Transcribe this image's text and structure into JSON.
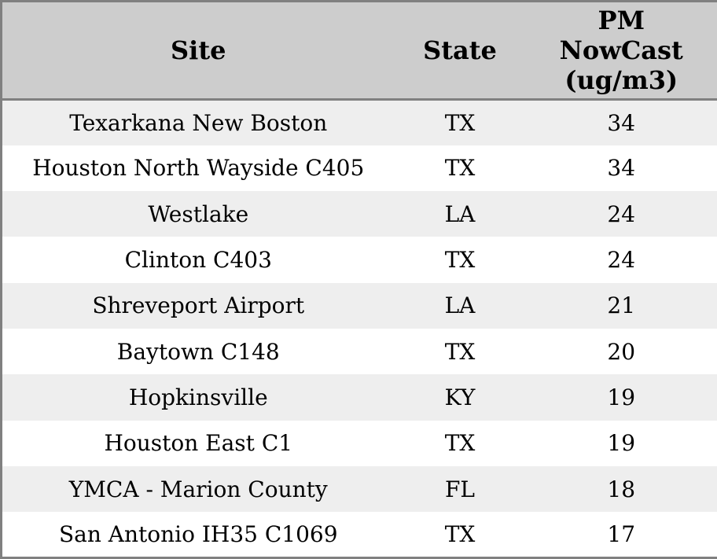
{
  "chart_data": {
    "type": "table",
    "title": "",
    "columns": [
      {
        "key": "site",
        "label": "Site",
        "display": "Site"
      },
      {
        "key": "state",
        "label": "State",
        "display": "State"
      },
      {
        "key": "pm",
        "label": "PM NowCast (ug/m3)",
        "display": "PM\nNowCast\n(ug/m3)"
      }
    ],
    "rows": [
      [
        "Texarkana New Boston",
        "TX",
        34
      ],
      [
        "Houston North Wayside C405",
        "TX",
        34
      ],
      [
        "Westlake",
        "LA",
        24
      ],
      [
        "Clinton C403",
        "TX",
        24
      ],
      [
        "Shreveport Airport",
        "LA",
        21
      ],
      [
        "Baytown C148",
        "TX",
        20
      ],
      [
        "Hopkinsville",
        "KY",
        19
      ],
      [
        "Houston East C1",
        "TX",
        19
      ],
      [
        "YMCA - Marion County",
        "FL",
        18
      ],
      [
        "San Antonio IH35 C1069",
        "TX",
        17
      ]
    ]
  },
  "colors": {
    "header_bg": "#cdcdcd",
    "row_alt_bg": "#eeeeee",
    "row_bg": "#ffffff",
    "border": "#808080",
    "text": "#000000"
  }
}
